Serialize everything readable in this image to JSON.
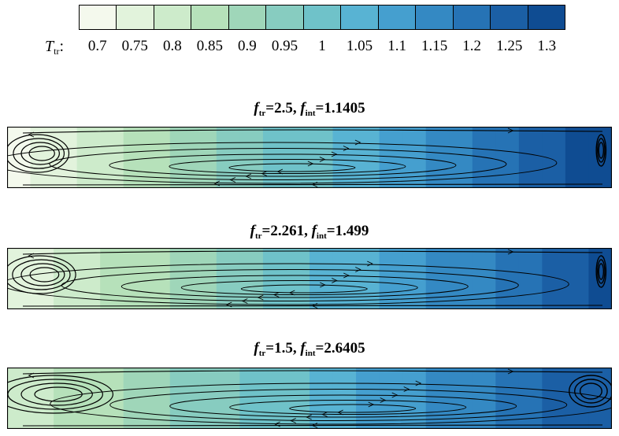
{
  "chart_data": {
    "type": "heatmap",
    "colorbar": {
      "label_main": "T",
      "label_sub": "tr",
      "label_suffix": ":",
      "ticks": [
        "0.7",
        "0.75",
        "0.8",
        "0.85",
        "0.9",
        "0.95",
        "1",
        "1.05",
        "1.1",
        "1.15",
        "1.2",
        "1.25",
        "1.3"
      ],
      "levels": [
        0.7,
        0.75,
        0.8,
        0.85,
        0.9,
        0.95,
        1.0,
        1.05,
        1.1,
        1.15,
        1.2,
        1.25,
        1.3
      ],
      "colors": [
        "#f4f9ed",
        "#e2f3dc",
        "#cdebcb",
        "#b6e1ba",
        "#9fd6b9",
        "#87ccc0",
        "#6fc2c9",
        "#58b3d3",
        "#459fcf",
        "#3489c3",
        "#2673b5",
        "#1b5fa5",
        "#0f4c92"
      ]
    },
    "panels": [
      {
        "f_sym": "f",
        "f_tr_sub": "tr",
        "f_tr_value": "=2.5,",
        "f_int_sub": "int",
        "f_int_value": "=1.1405",
        "f_tr": 2.5,
        "f_int": 1.1405,
        "t_left": 0.69,
        "t_right": 1.31,
        "cold_vortex_width": 0.15,
        "hot_vortex_width": 0.02,
        "main_cell_center": 0.44
      },
      {
        "f_sym": "f",
        "f_tr_sub": "tr",
        "f_tr_value": "=2.261,",
        "f_int_sub": "int",
        "f_int_value": "=1.499",
        "f_tr": 2.261,
        "f_int": 1.499,
        "t_left": 0.72,
        "t_right": 1.29,
        "cold_vortex_width": 0.17,
        "hot_vortex_width": 0.02,
        "main_cell_center": 0.46
      },
      {
        "f_sym": "f",
        "f_tr_sub": "tr",
        "f_tr_value": "=1.5,",
        "f_int_sub": "int",
        "f_int_value": "=2.6405",
        "f_tr": 1.5,
        "f_int": 2.6405,
        "t_left": 0.78,
        "t_right": 1.27,
        "cold_vortex_width": 0.28,
        "hot_vortex_width": 0.09,
        "main_cell_center": 0.54
      }
    ]
  }
}
